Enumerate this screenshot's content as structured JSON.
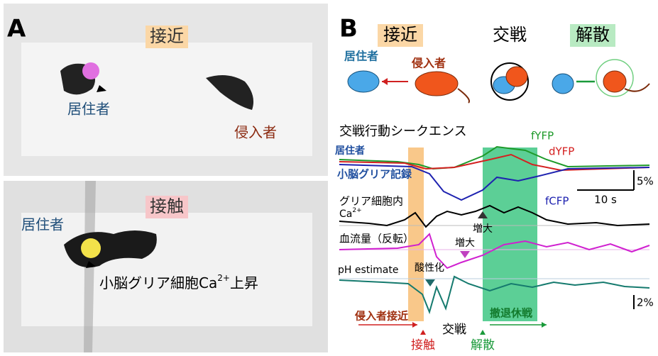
{
  "panel_a": {
    "label": "A",
    "top": {
      "title": "接近",
      "resident": "居住者",
      "intruder": "侵入者"
    },
    "bottom": {
      "title": "接触",
      "resident": "居住者",
      "note": "小脳グリア細胞Ca",
      "note_sup": "2+",
      "note_end": "上昇"
    }
  },
  "panel_b": {
    "label": "B",
    "phases": [
      "接近",
      "交戦",
      "解散"
    ],
    "resident": "居住者",
    "intruder": "侵入者",
    "sequence_title": "交戦行動シークエンス",
    "traces": {
      "resident": "居住者",
      "recording": "小脳グリア記録",
      "fyfp": "fYFP",
      "dyfp": "dYFP",
      "fcfp": "fCFP",
      "scale_y1": "5%",
      "scale_x": "10 s",
      "ca_label": "グリア細胞内",
      "ca": "Ca",
      "ca_sup": "2+",
      "ca_increase": "増大",
      "blood_label": "血流量（反転）",
      "blood_increase": "増大",
      "ph_label": "pH estimate",
      "ph_acid": "酸性化",
      "scale_y2": "2%"
    },
    "timeline": {
      "approach": "侵入者接近",
      "fight": "交戦",
      "retreat": "撤退休戦",
      "contact": "接触",
      "disperse": "解散"
    }
  }
}
